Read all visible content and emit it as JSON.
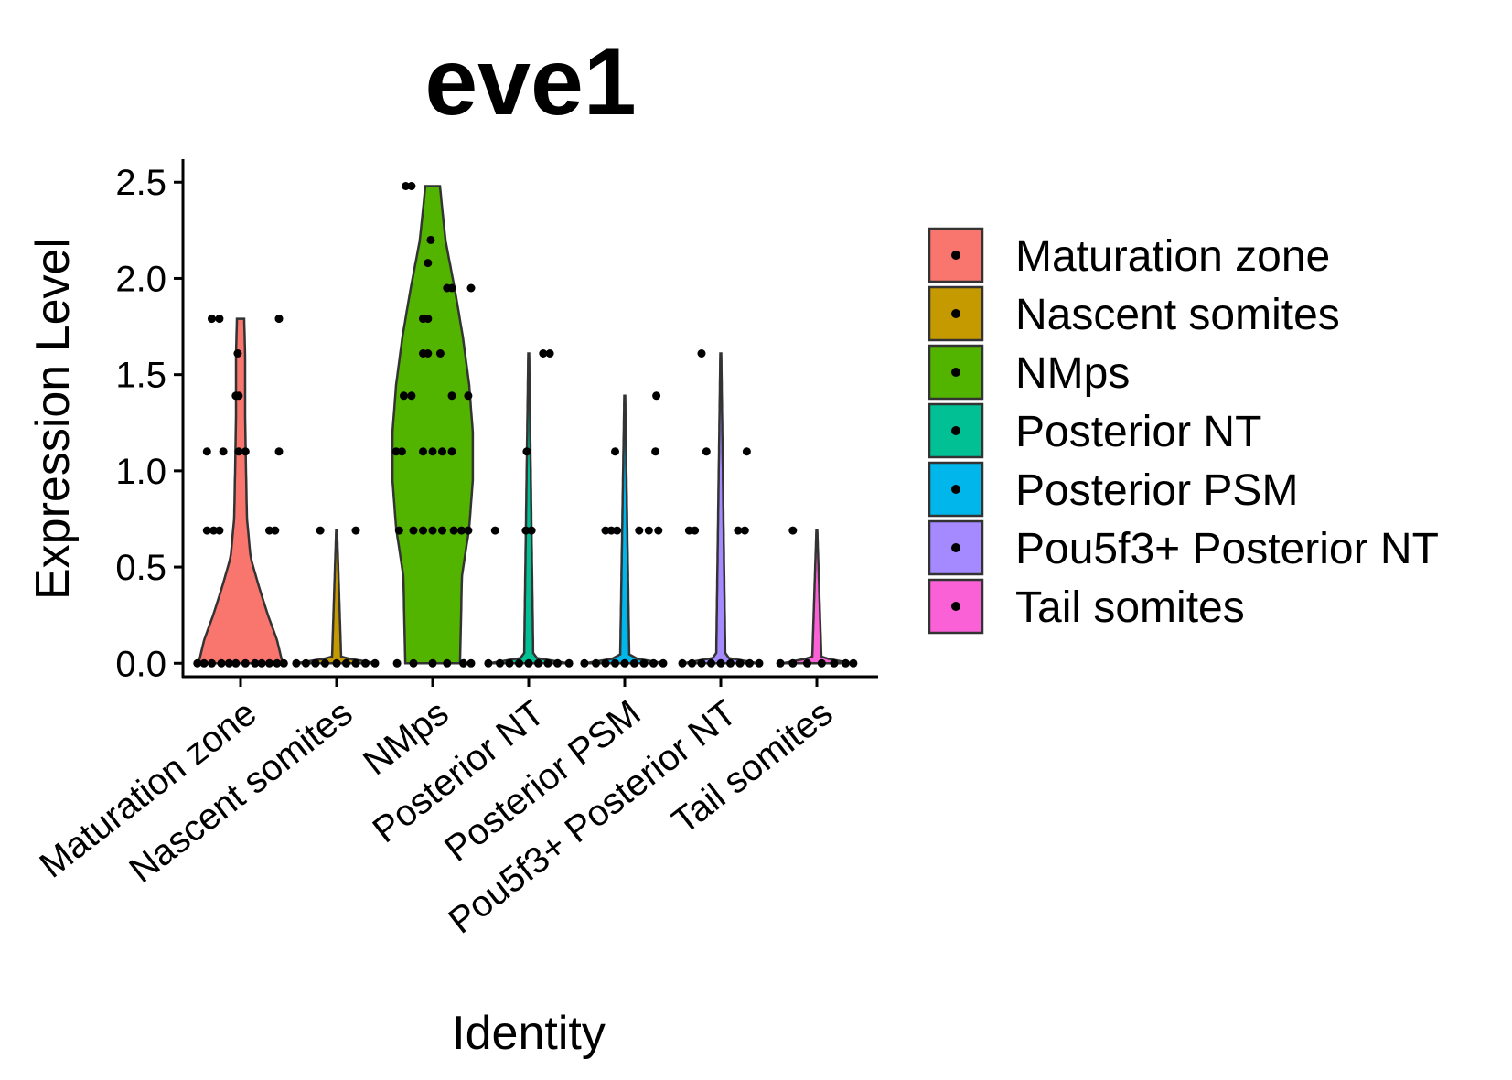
{
  "chart_data": {
    "type": "violin",
    "title": "eve1",
    "xlabel": "Identity",
    "ylabel": "Expression Level",
    "ylim": [
      -0.07,
      2.62
    ],
    "yticks": [
      0.0,
      0.5,
      1.0,
      1.5,
      2.0,
      2.5
    ],
    "ytick_labels": [
      "0.0",
      "0.5",
      "1.0",
      "1.5",
      "2.0",
      "2.5"
    ],
    "grid": false,
    "legend_position": "right",
    "categories": [
      "Maturation zone",
      "Nascent somites",
      "NMps",
      "Posterior NT",
      "Posterior PSM",
      "Pou5f3+ Posterior NT",
      "Tail somites"
    ],
    "colors": [
      "#F8766D",
      "#C49A00",
      "#53B400",
      "#00C094",
      "#00B6EB",
      "#A58AFF",
      "#FB61D7"
    ],
    "series": [
      {
        "name": "Maturation zone",
        "max": 1.79,
        "density": [
          [
            0.0,
            0.46
          ],
          [
            0.12,
            0.4
          ],
          [
            0.25,
            0.3
          ],
          [
            0.4,
            0.2
          ],
          [
            0.55,
            0.11
          ],
          [
            0.75,
            0.07
          ],
          [
            1.0,
            0.06
          ],
          [
            1.3,
            0.05
          ],
          [
            1.6,
            0.05
          ],
          [
            1.79,
            0.04
          ]
        ],
        "points": [
          [
            -0.45,
            0
          ],
          [
            -0.38,
            0
          ],
          [
            -0.3,
            0
          ],
          [
            -0.2,
            0
          ],
          [
            -0.12,
            0
          ],
          [
            -0.05,
            0
          ],
          [
            0.05,
            0
          ],
          [
            0.15,
            0
          ],
          [
            0.22,
            0
          ],
          [
            0.3,
            0
          ],
          [
            0.38,
            0
          ],
          [
            0.45,
            0
          ],
          [
            -0.35,
            0.69
          ],
          [
            -0.28,
            0.69
          ],
          [
            -0.22,
            0.69
          ],
          [
            0.3,
            0.69
          ],
          [
            0.36,
            0.69
          ],
          [
            -0.35,
            1.1
          ],
          [
            -0.18,
            1.1
          ],
          [
            -0.02,
            1.1
          ],
          [
            0.05,
            1.1
          ],
          [
            0.4,
            1.1
          ],
          [
            -0.05,
            1.39
          ],
          [
            -0.02,
            1.39
          ],
          [
            -0.03,
            1.61
          ],
          [
            -0.3,
            1.79
          ],
          [
            -0.22,
            1.79
          ],
          [
            0.4,
            1.79
          ]
        ]
      },
      {
        "name": "Nascent somites",
        "max": 0.69,
        "density": [
          [
            0.0,
            0.45
          ],
          [
            0.03,
            0.05
          ],
          [
            0.69,
            0.005
          ]
        ],
        "points": [
          [
            -0.42,
            0
          ],
          [
            -0.32,
            0
          ],
          [
            -0.22,
            0
          ],
          [
            -0.12,
            0
          ],
          [
            0,
            0
          ],
          [
            0.1,
            0
          ],
          [
            0.2,
            0
          ],
          [
            0.3,
            0
          ],
          [
            0.4,
            0
          ],
          [
            -0.17,
            0.69
          ],
          [
            0.2,
            0.69
          ]
        ]
      },
      {
        "name": "NMps",
        "max": 2.48,
        "density": [
          [
            0.0,
            0.3
          ],
          [
            0.2,
            0.31
          ],
          [
            0.45,
            0.32
          ],
          [
            0.7,
            0.4
          ],
          [
            0.95,
            0.44
          ],
          [
            1.2,
            0.44
          ],
          [
            1.45,
            0.4
          ],
          [
            1.7,
            0.33
          ],
          [
            1.95,
            0.24
          ],
          [
            2.2,
            0.14
          ],
          [
            2.48,
            0.08
          ]
        ],
        "points": [
          [
            -0.37,
            0
          ],
          [
            -0.2,
            0
          ],
          [
            0.0,
            0
          ],
          [
            0.15,
            0
          ],
          [
            0.32,
            0
          ],
          [
            0.4,
            0
          ],
          [
            -0.35,
            0.69
          ],
          [
            -0.2,
            0.69
          ],
          [
            -0.1,
            0.69
          ],
          [
            0.0,
            0.69
          ],
          [
            0.1,
            0.69
          ],
          [
            0.22,
            0.69
          ],
          [
            0.3,
            0.69
          ],
          [
            0.37,
            0.69
          ],
          [
            -0.38,
            1.1
          ],
          [
            -0.32,
            1.1
          ],
          [
            -0.1,
            1.1
          ],
          [
            0.0,
            1.1
          ],
          [
            0.1,
            1.1
          ],
          [
            0.2,
            1.1
          ],
          [
            -0.3,
            1.39
          ],
          [
            -0.22,
            1.39
          ],
          [
            0.2,
            1.39
          ],
          [
            0.37,
            1.39
          ],
          [
            -0.1,
            1.61
          ],
          [
            -0.05,
            1.61
          ],
          [
            0.08,
            1.61
          ],
          [
            -0.1,
            1.79
          ],
          [
            -0.05,
            1.79
          ],
          [
            0.15,
            1.95
          ],
          [
            0.2,
            1.95
          ],
          [
            0.4,
            1.95
          ],
          [
            -0.05,
            2.08
          ],
          [
            -0.02,
            2.2
          ],
          [
            -0.28,
            2.48
          ],
          [
            -0.22,
            2.48
          ]
        ]
      },
      {
        "name": "Posterior NT",
        "max": 1.61,
        "density": [
          [
            0.0,
            0.44
          ],
          [
            0.03,
            0.05
          ],
          [
            1.61,
            0.005
          ]
        ],
        "points": [
          [
            -0.42,
            0
          ],
          [
            -0.3,
            0
          ],
          [
            -0.2,
            0
          ],
          [
            -0.1,
            0
          ],
          [
            0,
            0
          ],
          [
            0.1,
            0
          ],
          [
            0.2,
            0
          ],
          [
            0.3,
            0
          ],
          [
            0.42,
            0
          ],
          [
            -0.35,
            0.69
          ],
          [
            -0.03,
            0.69
          ],
          [
            0.03,
            0.69
          ],
          [
            -0.02,
            1.1
          ],
          [
            0.15,
            1.61
          ],
          [
            0.22,
            1.61
          ]
        ]
      },
      {
        "name": "Posterior PSM",
        "max": 1.39,
        "density": [
          [
            0.0,
            0.44
          ],
          [
            0.03,
            0.05
          ],
          [
            1.39,
            0.005
          ]
        ],
        "points": [
          [
            -0.42,
            0
          ],
          [
            -0.3,
            0
          ],
          [
            -0.2,
            0
          ],
          [
            -0.1,
            0
          ],
          [
            0,
            0
          ],
          [
            0.1,
            0
          ],
          [
            0.2,
            0
          ],
          [
            0.3,
            0
          ],
          [
            0.4,
            0
          ],
          [
            -0.2,
            0.69
          ],
          [
            -0.14,
            0.69
          ],
          [
            -0.08,
            0.69
          ],
          [
            0.15,
            0.69
          ],
          [
            0.25,
            0.69
          ],
          [
            0.35,
            0.69
          ],
          [
            -0.1,
            1.1
          ],
          [
            0.32,
            1.1
          ],
          [
            0.33,
            1.39
          ]
        ]
      },
      {
        "name": "Pou5f3+ Posterior NT",
        "max": 1.61,
        "density": [
          [
            0.0,
            0.42
          ],
          [
            0.03,
            0.05
          ],
          [
            1.61,
            0.005
          ]
        ],
        "points": [
          [
            -0.4,
            0
          ],
          [
            -0.3,
            0
          ],
          [
            -0.2,
            0
          ],
          [
            -0.1,
            0
          ],
          [
            0,
            0
          ],
          [
            0.1,
            0
          ],
          [
            0.2,
            0
          ],
          [
            0.3,
            0
          ],
          [
            0.4,
            0
          ],
          [
            -0.33,
            0.69
          ],
          [
            -0.27,
            0.69
          ],
          [
            0.18,
            0.69
          ],
          [
            0.25,
            0.69
          ],
          [
            -0.15,
            1.1
          ],
          [
            0.27,
            1.1
          ],
          [
            -0.2,
            1.61
          ]
        ]
      },
      {
        "name": "Tail somites",
        "max": 0.69,
        "density": [
          [
            0.0,
            0.38
          ],
          [
            0.03,
            0.05
          ],
          [
            0.69,
            0.005
          ]
        ],
        "points": [
          [
            -0.38,
            0
          ],
          [
            -0.25,
            0
          ],
          [
            -0.1,
            0
          ],
          [
            0.05,
            0
          ],
          [
            0.18,
            0
          ],
          [
            0.3,
            0
          ],
          [
            0.38,
            0
          ],
          [
            -0.25,
            0.69
          ]
        ]
      }
    ]
  }
}
